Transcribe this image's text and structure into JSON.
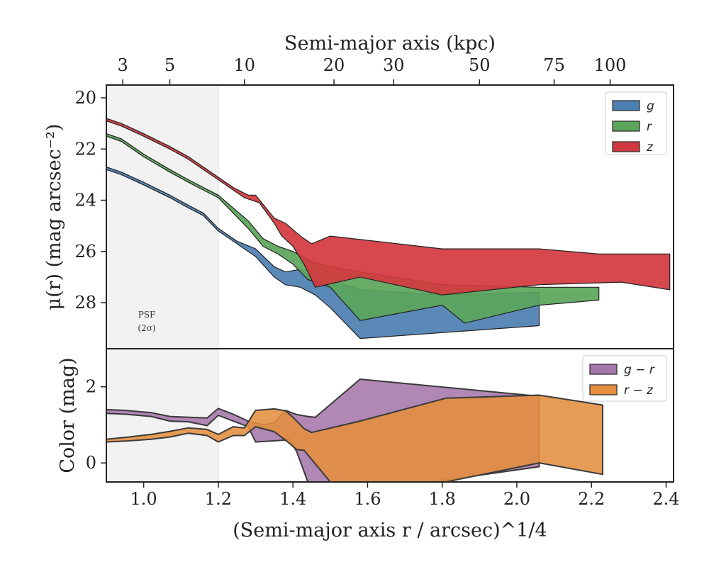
{
  "chart_data": [
    {
      "type": "area",
      "panel": "surface-brightness",
      "ylabel": "μ(r) (mag arcsec⁻²)",
      "top_xlabel": "Semi-major axis (kpc)",
      "top_ticks": [
        {
          "label": "3",
          "x": 0.944
        },
        {
          "label": "5",
          "x": 1.07
        },
        {
          "label": "10",
          "x": 1.27
        },
        {
          "label": "20",
          "x": 1.51
        },
        {
          "label": "30",
          "x": 1.67
        },
        {
          "label": "50",
          "x": 1.9
        },
        {
          "label": "75",
          "x": 2.1
        },
        {
          "label": "100",
          "x": 2.25
        }
      ],
      "ylim": [
        29.8,
        19.5
      ],
      "y_inverted": true,
      "yticks": [
        20,
        22,
        24,
        26,
        28
      ],
      "xlim": [
        0.9,
        2.42
      ],
      "shaded_region": {
        "x_end": 1.2,
        "label_line1": "PSF",
        "label_line2": "(2σ)"
      },
      "legend": {
        "position": "top-right"
      },
      "series": [
        {
          "name": "g",
          "color": "#4c7fb2",
          "upper": [
            [
              0.9,
              22.7
            ],
            [
              0.94,
              22.9
            ],
            [
              1.0,
              23.3
            ],
            [
              1.07,
              23.8
            ],
            [
              1.12,
              24.2
            ],
            [
              1.16,
              24.5
            ],
            [
              1.2,
              25.1
            ],
            [
              1.25,
              25.6
            ],
            [
              1.3,
              25.9
            ],
            [
              1.35,
              26.6
            ],
            [
              1.38,
              26.8
            ],
            [
              1.42,
              26.7
            ],
            [
              1.46,
              27.2
            ],
            [
              1.52,
              27.2
            ],
            [
              1.58,
              27.5
            ],
            [
              1.8,
              27.7
            ],
            [
              2.06,
              27.6
            ]
          ],
          "lower": [
            [
              0.9,
              22.8
            ],
            [
              0.94,
              23.0
            ],
            [
              1.0,
              23.4
            ],
            [
              1.07,
              23.9
            ],
            [
              1.12,
              24.3
            ],
            [
              1.16,
              24.6
            ],
            [
              1.2,
              25.2
            ],
            [
              1.25,
              25.7
            ],
            [
              1.3,
              26.2
            ],
            [
              1.35,
              27.0
            ],
            [
              1.38,
              27.3
            ],
            [
              1.42,
              27.4
            ],
            [
              1.46,
              27.7
            ],
            [
              1.5,
              28.2
            ],
            [
              1.58,
              29.4
            ],
            [
              2.06,
              28.9
            ]
          ]
        },
        {
          "name": "r",
          "color": "#5aa55a",
          "upper": [
            [
              0.9,
              21.4
            ],
            [
              0.94,
              21.6
            ],
            [
              1.0,
              22.2
            ],
            [
              1.07,
              22.8
            ],
            [
              1.12,
              23.2
            ],
            [
              1.16,
              23.5
            ],
            [
              1.2,
              23.8
            ],
            [
              1.24,
              24.3
            ],
            [
              1.28,
              24.8
            ],
            [
              1.32,
              25.5
            ],
            [
              1.36,
              25.8
            ],
            [
              1.4,
              26.0
            ],
            [
              1.45,
              26.4
            ],
            [
              1.5,
              26.6
            ],
            [
              1.58,
              26.8
            ],
            [
              1.8,
              27.3
            ],
            [
              2.06,
              27.4
            ],
            [
              2.22,
              27.4
            ]
          ],
          "lower": [
            [
              0.9,
              21.5
            ],
            [
              0.94,
              21.7
            ],
            [
              1.0,
              22.3
            ],
            [
              1.07,
              22.9
            ],
            [
              1.12,
              23.3
            ],
            [
              1.16,
              23.6
            ],
            [
              1.2,
              23.9
            ],
            [
              1.24,
              24.5
            ],
            [
              1.28,
              25.1
            ],
            [
              1.32,
              25.8
            ],
            [
              1.36,
              26.1
            ],
            [
              1.4,
              26.5
            ],
            [
              1.44,
              27.1
            ],
            [
              1.5,
              27.4
            ],
            [
              1.58,
              28.7
            ],
            [
              1.8,
              28.1
            ],
            [
              1.86,
              28.8
            ],
            [
              2.06,
              28.1
            ],
            [
              2.22,
              27.9
            ]
          ]
        },
        {
          "name": "z",
          "color": "#d2383f",
          "upper": [
            [
              0.9,
              20.8
            ],
            [
              0.94,
              21.0
            ],
            [
              1.0,
              21.4
            ],
            [
              1.07,
              21.9
            ],
            [
              1.12,
              22.3
            ],
            [
              1.16,
              22.7
            ],
            [
              1.2,
              23.1
            ],
            [
              1.24,
              23.5
            ],
            [
              1.28,
              23.8
            ],
            [
              1.3,
              23.8
            ],
            [
              1.35,
              24.7
            ],
            [
              1.38,
              24.9
            ],
            [
              1.42,
              25.4
            ],
            [
              1.45,
              25.7
            ],
            [
              1.5,
              25.4
            ],
            [
              1.8,
              25.9
            ],
            [
              2.06,
              25.9
            ],
            [
              2.22,
              26.1
            ],
            [
              2.41,
              26.1
            ]
          ],
          "lower": [
            [
              0.9,
              20.9
            ],
            [
              0.94,
              21.1
            ],
            [
              1.0,
              21.5
            ],
            [
              1.07,
              22.0
            ],
            [
              1.12,
              22.4
            ],
            [
              1.16,
              22.8
            ],
            [
              1.2,
              23.2
            ],
            [
              1.24,
              23.6
            ],
            [
              1.27,
              23.9
            ],
            [
              1.31,
              24.1
            ],
            [
              1.35,
              24.9
            ],
            [
              1.37,
              25.4
            ],
            [
              1.4,
              25.8
            ],
            [
              1.43,
              26.5
            ],
            [
              1.46,
              27.4
            ],
            [
              1.58,
              27.0
            ],
            [
              1.8,
              27.7
            ],
            [
              2.06,
              27.3
            ],
            [
              2.28,
              27.2
            ],
            [
              2.41,
              27.5
            ]
          ]
        }
      ]
    },
    {
      "type": "area",
      "panel": "color",
      "ylabel": "Color (mag)",
      "xlabel": "(Semi-major axis r / arcsec)^1/4",
      "xlim": [
        0.9,
        2.42
      ],
      "xticks": [
        "1.0",
        "1.2",
        "1.4",
        "1.6",
        "1.8",
        "2.0",
        "2.2",
        "2.4"
      ],
      "xtick_values": [
        1.0,
        1.2,
        1.4,
        1.6,
        1.8,
        2.0,
        2.2,
        2.4
      ],
      "ylim": [
        -0.5,
        3.0
      ],
      "yticks": [
        0,
        2
      ],
      "shaded_region": {
        "x_end": 1.2
      },
      "legend": {
        "position": "top-right"
      },
      "series": [
        {
          "name": "g − r",
          "color": "#a676ab",
          "upper": [
            [
              0.9,
              1.4
            ],
            [
              0.95,
              1.38
            ],
            [
              1.02,
              1.32
            ],
            [
              1.07,
              1.22
            ],
            [
              1.12,
              1.2
            ],
            [
              1.17,
              1.18
            ],
            [
              1.2,
              1.43
            ],
            [
              1.24,
              1.28
            ],
            [
              1.28,
              1.1
            ],
            [
              1.32,
              1.0
            ],
            [
              1.35,
              1.05
            ],
            [
              1.38,
              1.38
            ],
            [
              1.41,
              1.27
            ],
            [
              1.44,
              1.22
            ],
            [
              1.46,
              1.2
            ],
            [
              1.58,
              2.2
            ],
            [
              2.06,
              1.75
            ]
          ],
          "lower": [
            [
              0.9,
              1.3
            ],
            [
              0.95,
              1.28
            ],
            [
              1.02,
              1.22
            ],
            [
              1.07,
              1.1
            ],
            [
              1.12,
              1.08
            ],
            [
              1.17,
              0.98
            ],
            [
              1.2,
              1.25
            ],
            [
              1.24,
              1.1
            ],
            [
              1.28,
              0.95
            ],
            [
              1.3,
              0.55
            ],
            [
              1.35,
              0.58
            ],
            [
              1.38,
              0.6
            ],
            [
              1.39,
              0.62
            ],
            [
              1.41,
              0.3
            ],
            [
              1.44,
              -0.5
            ],
            [
              1.52,
              -0.6
            ],
            [
              1.7,
              -0.6
            ],
            [
              2.06,
              -0.1
            ]
          ]
        },
        {
          "name": "r − z",
          "color": "#e48e3e",
          "upper": [
            [
              0.9,
              0.62
            ],
            [
              0.96,
              0.68
            ],
            [
              1.02,
              0.75
            ],
            [
              1.07,
              0.83
            ],
            [
              1.12,
              0.92
            ],
            [
              1.17,
              0.88
            ],
            [
              1.2,
              0.75
            ],
            [
              1.24,
              0.95
            ],
            [
              1.27,
              0.92
            ],
            [
              1.3,
              1.38
            ],
            [
              1.35,
              1.42
            ],
            [
              1.38,
              1.37
            ],
            [
              1.4,
              1.2
            ],
            [
              1.43,
              0.9
            ],
            [
              1.45,
              0.8
            ],
            [
              1.58,
              1.1
            ],
            [
              1.81,
              1.7
            ],
            [
              2.06,
              1.78
            ],
            [
              2.23,
              1.52
            ]
          ],
          "lower": [
            [
              0.9,
              0.55
            ],
            [
              0.96,
              0.58
            ],
            [
              1.02,
              0.62
            ],
            [
              1.07,
              0.68
            ],
            [
              1.12,
              0.78
            ],
            [
              1.17,
              0.72
            ],
            [
              1.2,
              0.55
            ],
            [
              1.24,
              0.72
            ],
            [
              1.27,
              0.72
            ],
            [
              1.3,
              0.95
            ],
            [
              1.35,
              0.82
            ],
            [
              1.38,
              0.6
            ],
            [
              1.41,
              0.35
            ],
            [
              1.43,
              0.33
            ],
            [
              1.5,
              -0.5
            ],
            [
              1.58,
              -0.8
            ],
            [
              1.81,
              -0.5
            ],
            [
              2.06,
              0.0
            ],
            [
              2.23,
              -0.3
            ]
          ]
        }
      ]
    }
  ]
}
